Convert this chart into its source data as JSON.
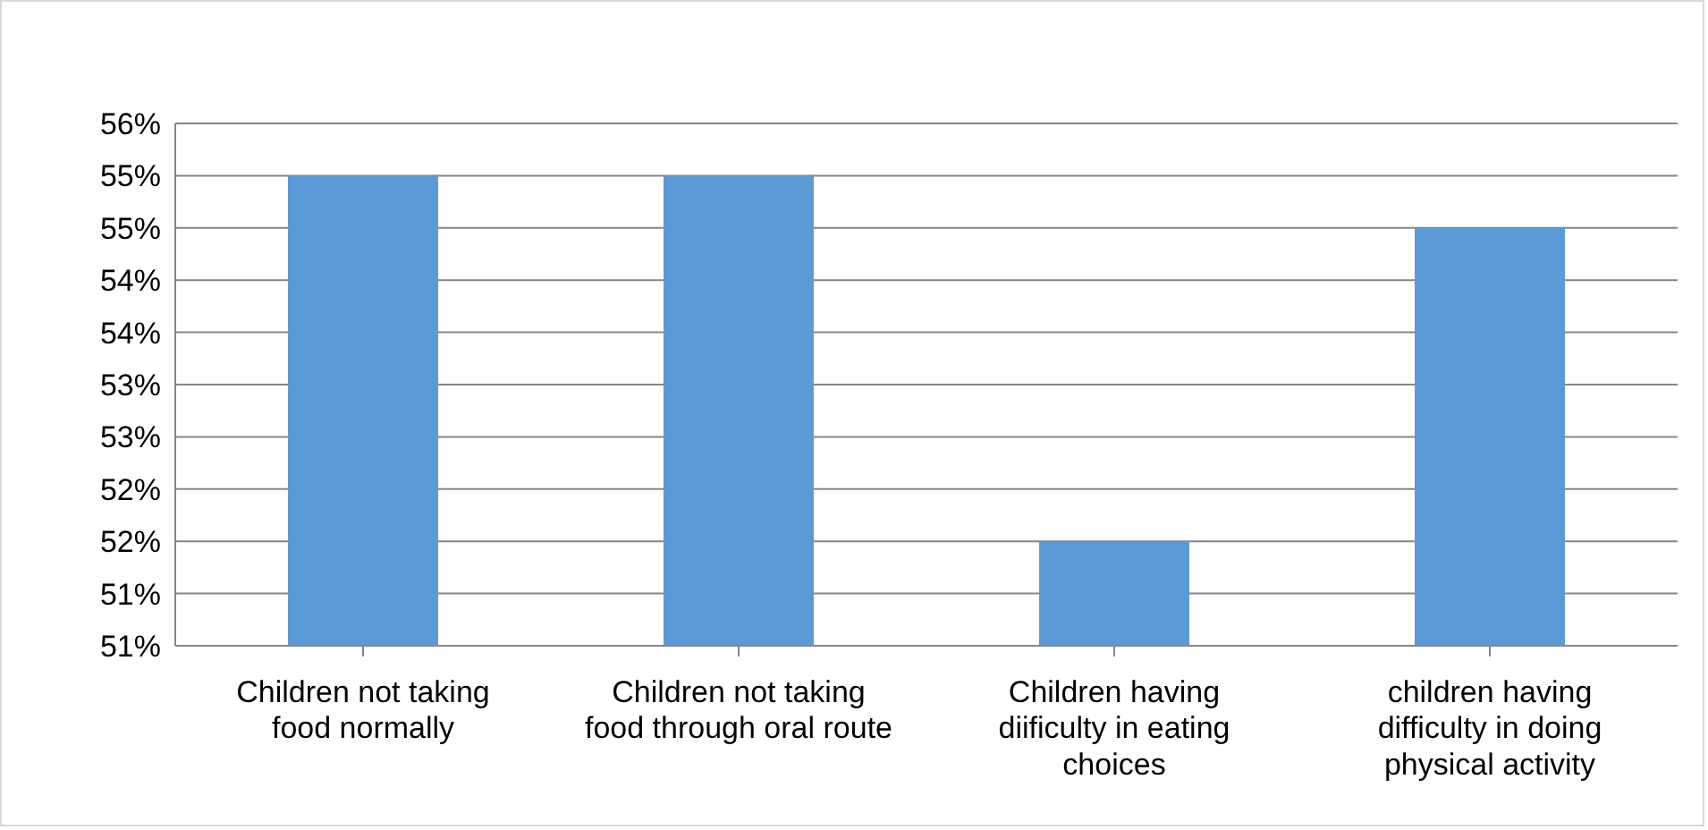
{
  "chart_data": {
    "type": "bar",
    "categories": [
      "Children not taking food normally",
      "Children not taking food through oral route",
      "Children having diificulty in eating choices",
      "children having difficulty in doing physical activity"
    ],
    "values": [
      55,
      55,
      51.5,
      54.5
    ],
    "color": "#5b9bd5",
    "ylim": [
      50.5,
      55.5
    ],
    "yticks": [
      {
        "value": 50.5,
        "label": "51%"
      },
      {
        "value": 51,
        "label": "51%"
      },
      {
        "value": 51.5,
        "label": "52%"
      },
      {
        "value": 52,
        "label": "52%"
      },
      {
        "value": 52.5,
        "label": "53%"
      },
      {
        "value": 53,
        "label": "53%"
      },
      {
        "value": 53.5,
        "label": "54%"
      },
      {
        "value": 54,
        "label": "54%"
      },
      {
        "value": 54.5,
        "label": "55%"
      },
      {
        "value": 55,
        "label": "55%"
      },
      {
        "value": 55.5,
        "label": "56%"
      }
    ],
    "grid": "y",
    "legend": false
  }
}
